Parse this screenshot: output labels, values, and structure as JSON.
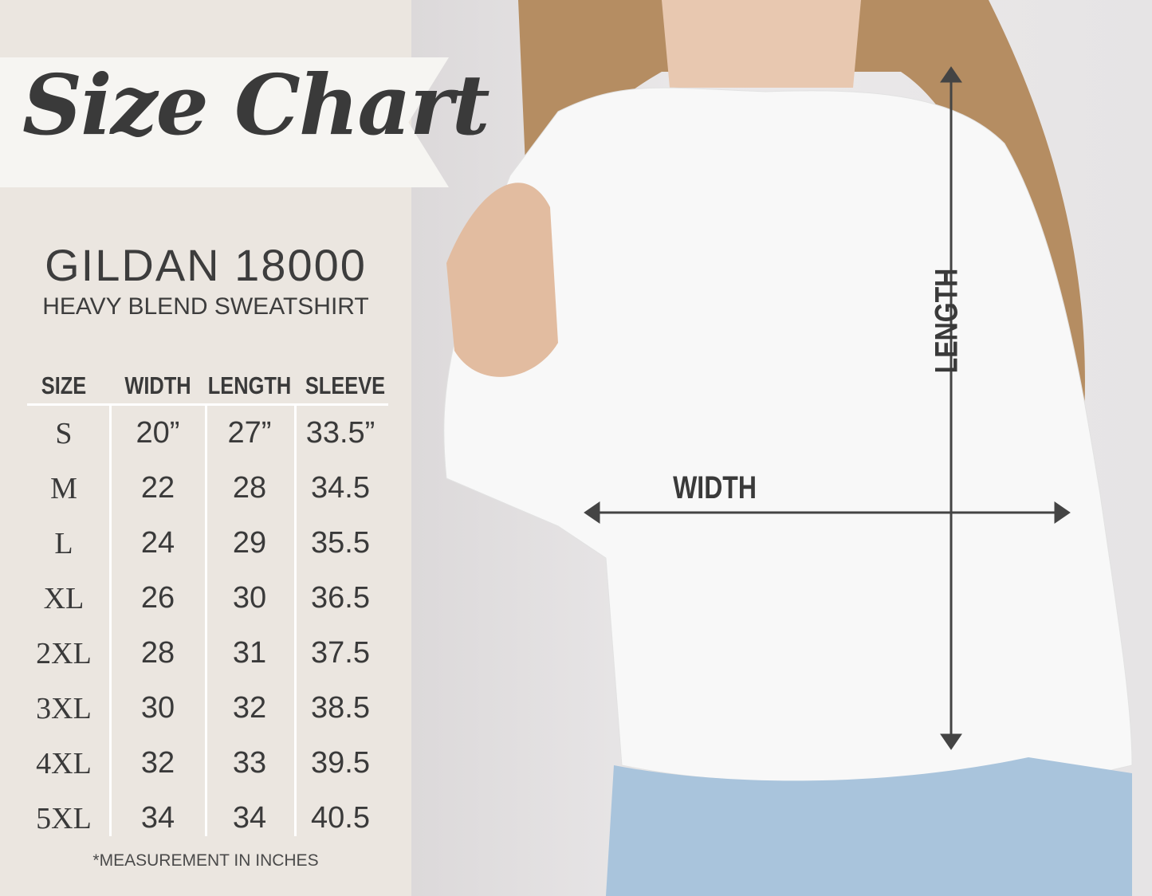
{
  "title": "Size Chart",
  "brand": "GILDAN 18000",
  "subtitle": "HEAVY BLEND SWEATSHIRT",
  "table": {
    "headers": [
      "SIZE",
      "WIDTH",
      "LENGTH",
      "SLEEVE"
    ],
    "rows": [
      [
        "S",
        "20”",
        "27”",
        "33.5”"
      ],
      [
        "M",
        "22",
        "28",
        "34.5"
      ],
      [
        "L",
        "24",
        "29",
        "35.5"
      ],
      [
        "XL",
        "26",
        "30",
        "36.5"
      ],
      [
        "2XL",
        "28",
        "31",
        "37.5"
      ],
      [
        "3XL",
        "30",
        "32",
        "38.5"
      ],
      [
        "4XL",
        "32",
        "33",
        "39.5"
      ],
      [
        "5XL",
        "34",
        "34",
        "40.5"
      ]
    ]
  },
  "note": "*MEASUREMENT IN INCHES",
  "photo": {
    "width_label": "WIDTH",
    "length_label": "LENGTH"
  },
  "colors": {
    "panel": "#ebe6e0",
    "text": "#3a3a3a",
    "arrow": "#444444"
  }
}
